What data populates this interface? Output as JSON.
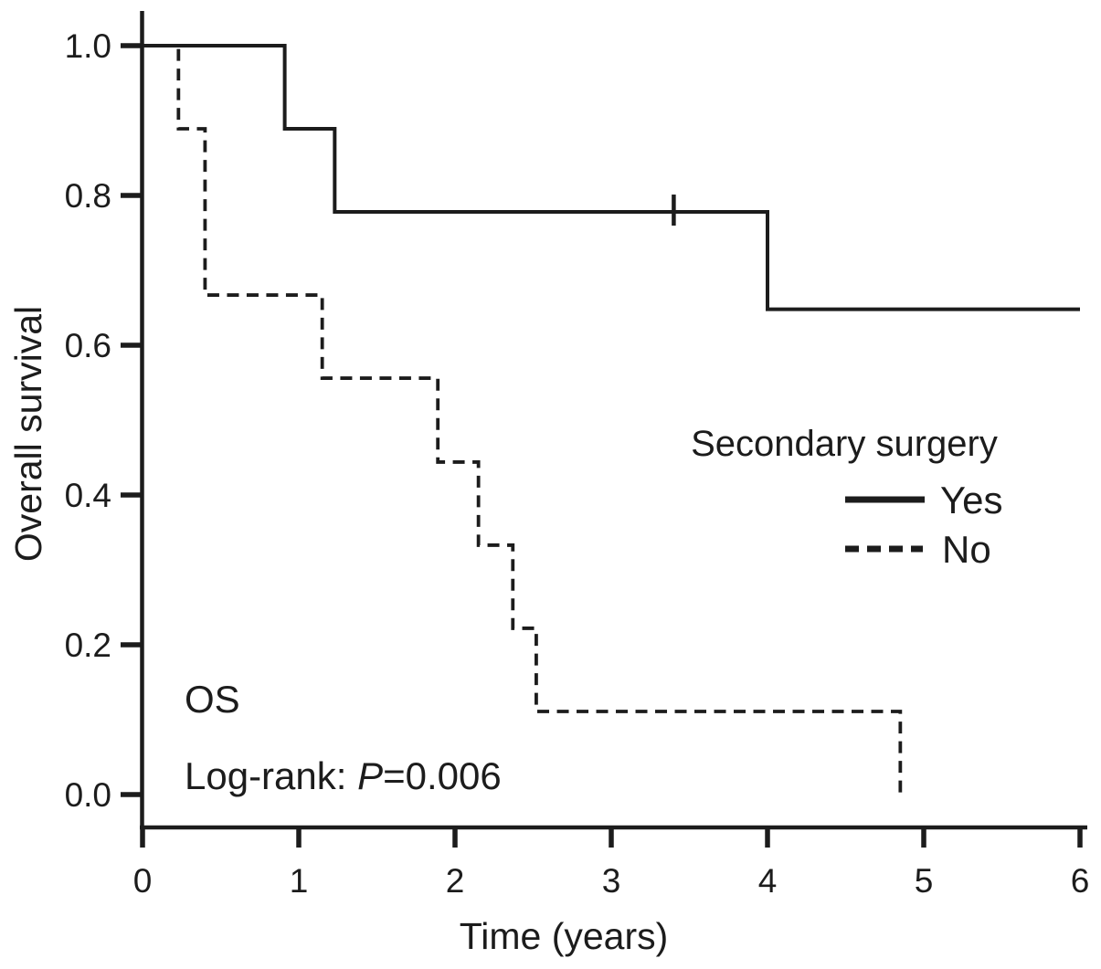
{
  "figure": {
    "background": "#ffffff",
    "ink_color": "#1c1c1c"
  },
  "chart_data": {
    "type": "line",
    "subtype": "kaplan-meier-step",
    "title": "",
    "xlabel": "Time (years)",
    "ylabel": "Overall survival",
    "xlim": [
      0,
      6
    ],
    "ylim": [
      0.0,
      1.0
    ],
    "grid": false,
    "x_ticks": [
      {
        "value": 0,
        "label": "0"
      },
      {
        "value": 1,
        "label": "1"
      },
      {
        "value": 2,
        "label": "2"
      },
      {
        "value": 3,
        "label": "3"
      },
      {
        "value": 4,
        "label": "4"
      },
      {
        "value": 5,
        "label": "5"
      },
      {
        "value": 6,
        "label": "6"
      }
    ],
    "y_ticks": [
      {
        "value": 1.0,
        "label": "1.0"
      },
      {
        "value": 0.8,
        "label": "0.8"
      },
      {
        "value": 0.6,
        "label": "0.6"
      },
      {
        "value": 0.4,
        "label": "0.4"
      },
      {
        "value": 0.2,
        "label": "0.2"
      },
      {
        "value": 0.0,
        "label": "0.0"
      }
    ],
    "legend": {
      "title": "Secondary surgery",
      "position": "right-middle"
    },
    "annotations": {
      "endpoint": "OS",
      "logrank_prefix": "Log-rank: ",
      "logrank_stat": "P",
      "logrank_value": "=0.006"
    },
    "series": [
      {
        "name": "Yes",
        "line_style": "solid",
        "steps": [
          [
            0,
            1.0
          ],
          [
            0.91,
            0.889
          ],
          [
            1.23,
            0.778
          ],
          [
            4.0,
            0.648
          ]
        ],
        "end_time": 6.0,
        "censor_marks": [
          [
            3.4,
            0.778
          ]
        ]
      },
      {
        "name": "No",
        "line_style": "dashed",
        "steps": [
          [
            0,
            1.0
          ],
          [
            0.23,
            0.889
          ],
          [
            0.4,
            0.667
          ],
          [
            1.15,
            0.556
          ],
          [
            1.89,
            0.444
          ],
          [
            2.15,
            0.333
          ],
          [
            2.37,
            0.222
          ],
          [
            2.52,
            0.111
          ],
          [
            4.85,
            0.0
          ]
        ],
        "end_time": 4.85,
        "censor_marks": []
      }
    ]
  }
}
